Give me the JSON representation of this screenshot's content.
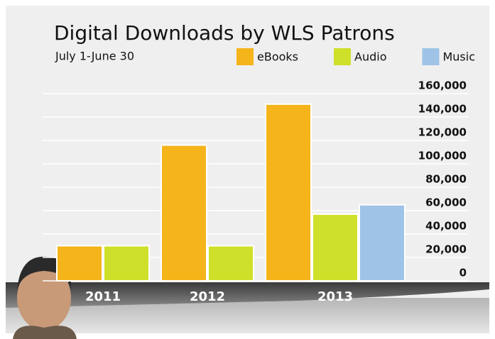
{
  "chart_data": {
    "type": "bar",
    "title": "Digital Downloads by WLS Patrons",
    "subtitle": "July 1-June 30",
    "categories": [
      "2011",
      "2012",
      "2013"
    ],
    "series": [
      {
        "name": "eBooks",
        "color": "#f4b41a",
        "values": [
          30000,
          116000,
          151000
        ]
      },
      {
        "name": "Audio",
        "color": "#cfe02a",
        "values": [
          30000,
          30000,
          57000
        ]
      },
      {
        "name": "Music",
        "color": "#9ec3e6",
        "values": [
          null,
          null,
          65000
        ]
      }
    ],
    "ylim": [
      0,
      160000
    ],
    "yticks": [
      0,
      {
        "value": 20000,
        "label": "20,000"
      },
      {
        "value": 40000,
        "label": "40,000"
      },
      {
        "value": 60000,
        "label": "60,000"
      },
      {
        "value": 80000,
        "label": "80,000"
      },
      {
        "value": 100000,
        "label": "100,000"
      },
      {
        "value": 120000,
        "label": "120,000"
      },
      {
        "value": 140000,
        "label": "140,000"
      },
      {
        "value": 160000,
        "label": "160,000"
      }
    ],
    "grid": true,
    "legend": "top-right"
  }
}
